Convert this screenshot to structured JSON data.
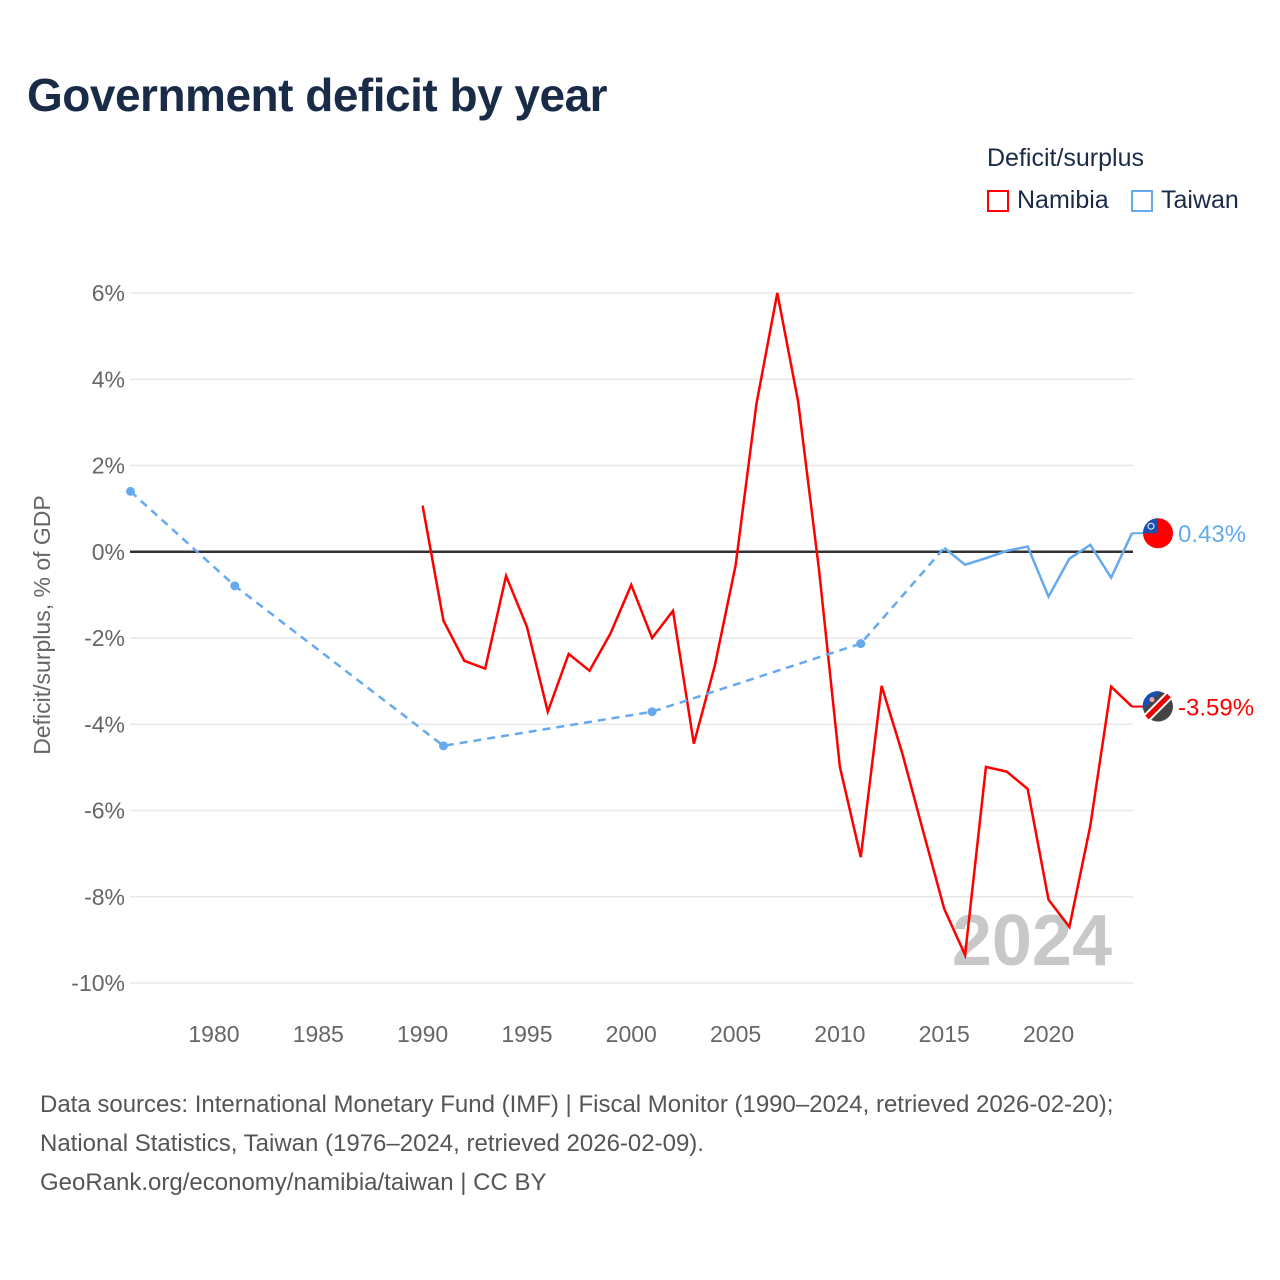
{
  "title": "Government deficit by year",
  "footer": {
    "line1": "Data sources: International Monetary Fund (IMF) | Fiscal Monitor (1990–2024, retrieved 2026-02-20);",
    "line2": "National Statistics, Taiwan (1976–2024, retrieved 2026-02-09).",
    "line3": "GeoRank.org/economy/namibia/taiwan | CC BY"
  },
  "chart_data": {
    "type": "line",
    "title": "Government deficit by year",
    "xlabel": "",
    "ylabel": "Deficit/surplus, % of GDP",
    "xlim": [
      1976,
      2024
    ],
    "ylim": [
      -10,
      6
    ],
    "xticks": [
      "1980",
      "1985",
      "1990",
      "1995",
      "2000",
      "2005",
      "2010",
      "2015",
      "2020"
    ],
    "yticks": [
      "6%",
      "4%",
      "2%",
      "0%",
      "-2%",
      "-4%",
      "-6%",
      "-8%",
      "-10%"
    ],
    "legend_title": "Deficit/surplus",
    "legend_position": "top-right",
    "watermark": "2024",
    "series": [
      {
        "name": "Namibia",
        "color": "#ff0000",
        "end_label": "-3.59%",
        "x": [
          1990,
          1991,
          1992,
          1993,
          1994,
          1995,
          1996,
          1997,
          1998,
          1999,
          2000,
          2001,
          2002,
          2003,
          2004,
          2005,
          2006,
          2007,
          2008,
          2009,
          2010,
          2011,
          2012,
          2013,
          2014,
          2015,
          2016,
          2017,
          2018,
          2019,
          2020,
          2021,
          2022,
          2023,
          2024
        ],
        "y": [
          1.07,
          -1.6,
          -2.53,
          -2.71,
          -0.56,
          -1.74,
          -3.71,
          -2.37,
          -2.76,
          -1.9,
          -0.77,
          -2.0,
          -1.37,
          -4.45,
          -2.65,
          -0.32,
          3.43,
          6.0,
          3.48,
          -0.42,
          -4.99,
          -7.08,
          -3.11,
          -4.69,
          -6.5,
          -8.28,
          -9.35,
          -4.99,
          -5.1,
          -5.5,
          -8.07,
          -8.7,
          -6.36,
          -3.13,
          -3.59
        ]
      },
      {
        "name": "Taiwan",
        "color": "#66aaee",
        "end_label": "0.43%",
        "x": [
          1976,
          1981,
          1991,
          2001,
          2011,
          2015,
          2016,
          2017,
          2018,
          2019,
          2020,
          2021,
          2022,
          2023,
          2024
        ],
        "y": [
          1.4,
          -0.79,
          -4.5,
          -3.71,
          -2.13,
          0.09,
          -0.3,
          -0.15,
          0.02,
          0.12,
          -1.04,
          -0.16,
          0.16,
          -0.6,
          0.43
        ],
        "sparse_until": 2015
      }
    ]
  }
}
